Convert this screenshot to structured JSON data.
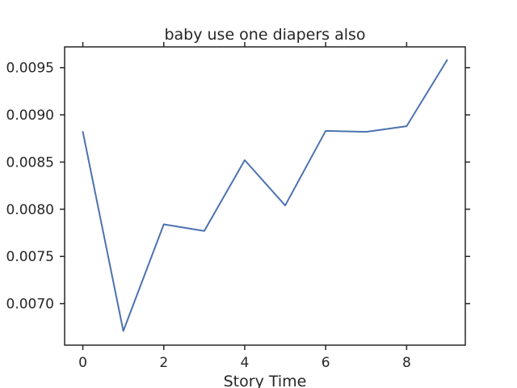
{
  "chart_data": {
    "type": "line",
    "title": "baby use one diapers also",
    "xlabel": "Story Time",
    "ylabel": "",
    "x": [
      0,
      1,
      2,
      3,
      4,
      5,
      6,
      7,
      8,
      9
    ],
    "series": [
      {
        "values": [
          0.00882,
          0.00671,
          0.00784,
          0.00777,
          0.00852,
          0.00804,
          0.00883,
          0.00882,
          0.00888,
          0.00958
        ],
        "color": "#4c72b0"
      }
    ],
    "xlim": [
      -0.45,
      9.45
    ],
    "ylim": [
      0.00656,
      0.00972
    ],
    "xticks": [
      0,
      2,
      4,
      6,
      8
    ],
    "xtick_labels": [
      "0",
      "2",
      "4",
      "6",
      "8"
    ],
    "yticks": [
      0.007,
      0.0075,
      0.008,
      0.0085,
      0.009,
      0.0095
    ],
    "ytick_labels": [
      "0.0070",
      "0.0075",
      "0.0080",
      "0.0085",
      "0.0090",
      "0.0095"
    ],
    "grid": false,
    "legend": "none"
  }
}
